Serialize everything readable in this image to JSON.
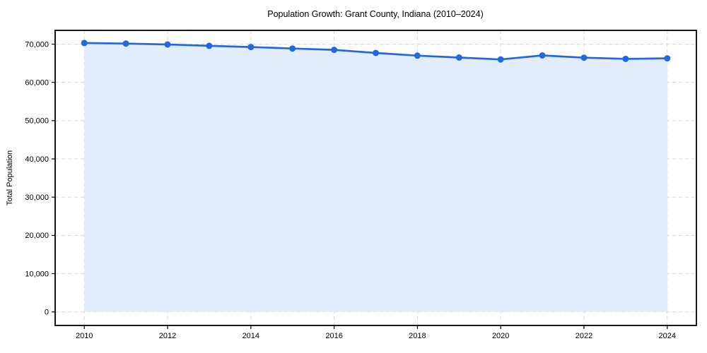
{
  "chart_data": {
    "type": "area",
    "title": "Population Growth: Grant County, Indiana (2010–2024)",
    "ylabel": "Total Population",
    "x": [
      2010,
      2011,
      2012,
      2013,
      2014,
      2015,
      2016,
      2017,
      2018,
      2019,
      2020,
      2021,
      2022,
      2023,
      2024
    ],
    "series": [
      {
        "name": "Total Population",
        "values": [
          70300,
          70150,
          69900,
          69550,
          69250,
          68850,
          68500,
          67700,
          67000,
          66500,
          66000,
          67050,
          66450,
          66150,
          66300
        ]
      }
    ],
    "baseline": 0,
    "xticks": [
      2010,
      2012,
      2014,
      2016,
      2018,
      2020,
      2022,
      2024
    ],
    "yticks": [
      0,
      10000,
      20000,
      30000,
      40000,
      50000,
      60000,
      70000
    ],
    "xlim": [
      2009.3,
      2024.7
    ],
    "ylim": [
      -3550,
      73600
    ],
    "grid": true,
    "legend": "none",
    "colors": {
      "line": "#2169e0",
      "marker": "#2169e0",
      "fill": "#e2ecfa",
      "grid": "#d9d9d9",
      "spine": "#000000",
      "text": "#000000",
      "background": "#ffffff"
    }
  }
}
